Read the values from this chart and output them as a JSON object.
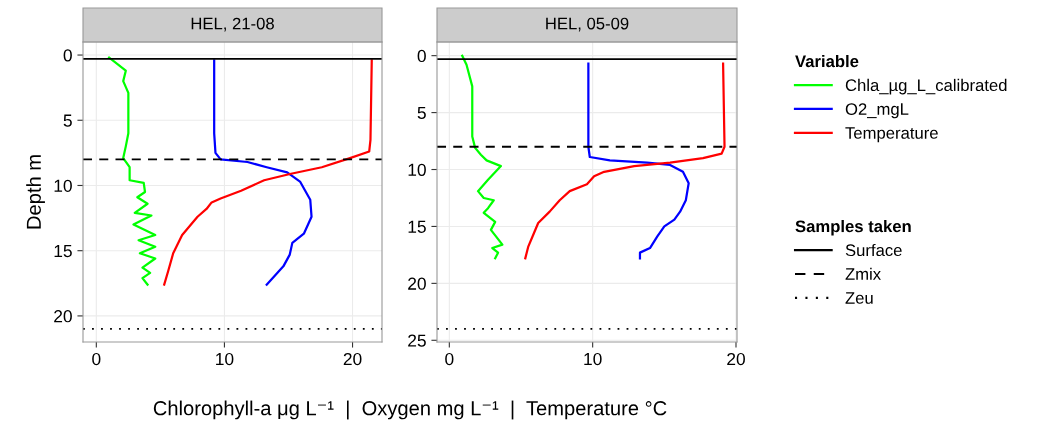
{
  "chart_data": [
    {
      "type": "line",
      "title": "HEL, 21-08",
      "ylabel": "Depth m",
      "xlabel": "Chlorophyll-a μg L⁻¹  |  Oxygen mg L⁻¹  |  Temperature °C",
      "legend": "right",
      "legend_title": "Variable",
      "annotations": [
        "Samples taken"
      ],
      "xlim": [
        -1.04,
        22.3
      ],
      "ylim": [
        22.0,
        -1.0
      ],
      "xticks": [
        0,
        10,
        20
      ],
      "yticks": [
        0,
        5,
        10,
        15,
        20
      ],
      "grid": true,
      "line_style": "solid",
      "series": [
        {
          "name": "Chla_µg_L_calibrated",
          "color": "#00ff00",
          "x": [
            1.0,
            2.3,
            2.1,
            2.5,
            2.5,
            2.3,
            2.1,
            2.6,
            2.6,
            3.7,
            3.8,
            3.2,
            4.0,
            3.0,
            4.3,
            2.9,
            4.6,
            3.3,
            4.6,
            3.4,
            4.6,
            3.6,
            4.2,
            3.6,
            4.0
          ],
          "values": [
            0.2,
            1.2,
            2.0,
            2.9,
            6.0,
            7.0,
            7.9,
            8.6,
            9.6,
            9.8,
            10.5,
            10.9,
            11.4,
            12.1,
            12.3,
            13.0,
            13.8,
            14.2,
            14.7,
            15.2,
            15.6,
            16.3,
            16.7,
            17.1,
            17.6
          ]
        },
        {
          "name": "O2_mgL",
          "color": "#0000ff",
          "x": [
            9.2,
            9.2,
            9.3,
            9.7,
            11.8,
            13.3,
            14.9,
            15.9,
            16.7,
            16.8,
            16.2,
            15.3,
            15.1,
            14.6,
            13.3
          ],
          "values": [
            0.4,
            6.0,
            7.5,
            8.0,
            8.2,
            8.6,
            9.0,
            9.7,
            11.1,
            12.4,
            13.7,
            14.4,
            15.3,
            16.2,
            17.6
          ]
        },
        {
          "name": "Temperature",
          "color": "#ff0000",
          "x": [
            21.5,
            21.4,
            21.3,
            19.8,
            17.6,
            15.2,
            13.1,
            11.3,
            9.7,
            9.0,
            8.6,
            7.9,
            6.7,
            6.0,
            5.6,
            5.3
          ],
          "values": [
            0.4,
            6.5,
            7.4,
            7.9,
            8.6,
            9.1,
            9.6,
            10.4,
            11.0,
            11.3,
            11.8,
            12.4,
            13.8,
            15.2,
            16.6,
            17.6
          ]
        }
      ],
      "ref_lines": [
        {
          "axis": "y",
          "value": 0.3,
          "label": "Surface",
          "color": "#000000",
          "line_style": "solid"
        },
        {
          "axis": "y",
          "value": 8.0,
          "label": "Zmix",
          "color": "#000000",
          "line_style": "dashed"
        },
        {
          "axis": "y",
          "value": 21.0,
          "label": "Zeu",
          "color": "#000000",
          "line_style": "dotted"
        }
      ]
    },
    {
      "type": "line",
      "title": "HEL, 05-09",
      "xlim": [
        -0.86,
        20.07
      ],
      "ylim": [
        25.15,
        -1.2
      ],
      "xticks": [
        0,
        10,
        20
      ],
      "yticks": [
        0,
        5,
        10,
        15,
        20,
        25
      ],
      "grid": true,
      "line_style": "solid",
      "series": [
        {
          "color": "#00ff00",
          "x": [
            0.9,
            1.2,
            1.6,
            1.6,
            1.6,
            1.8,
            2.2,
            2.6,
            3.6,
            2.7,
            2.0,
            2.4,
            3.1,
            2.7,
            2.4,
            3.2,
            2.9,
            3.7,
            3.0,
            3.4,
            3.2
          ],
          "values": [
            0.0,
            0.8,
            2.7,
            4.8,
            7.1,
            8.1,
            8.7,
            9.2,
            9.7,
            10.9,
            11.9,
            12.5,
            12.7,
            13.4,
            13.8,
            14.6,
            15.3,
            16.6,
            16.9,
            17.3,
            17.8
          ]
        },
        {
          "color": "#0000ff",
          "x": [
            9.7,
            9.7,
            9.8,
            11.2,
            13.8,
            15.4,
            16.3,
            16.7,
            16.5,
            16.1,
            15.7,
            15.0,
            14.5,
            14.0,
            13.3,
            13.3
          ],
          "values": [
            0.7,
            8.0,
            8.9,
            9.2,
            9.4,
            9.6,
            10.2,
            11.2,
            12.7,
            13.7,
            14.4,
            15.0,
            15.9,
            16.9,
            17.3,
            17.8
          ]
        },
        {
          "color": "#ff0000",
          "x": [
            19.1,
            19.2,
            19.0,
            17.7,
            15.4,
            12.9,
            10.8,
            10.1,
            9.6,
            8.4,
            7.7,
            7.0,
            6.2,
            5.9,
            5.5,
            5.3
          ],
          "values": [
            0.7,
            8.0,
            8.6,
            9.0,
            9.4,
            9.7,
            10.2,
            10.6,
            11.3,
            11.9,
            12.7,
            13.7,
            14.7,
            15.6,
            16.8,
            17.8
          ]
        }
      ],
      "ref_lines": [
        {
          "axis": "y",
          "value": 0.3,
          "color": "#000000",
          "line_style": "solid"
        },
        {
          "axis": "y",
          "value": 8.0,
          "color": "#000000",
          "line_style": "dashed"
        },
        {
          "axis": "y",
          "value": 24.0,
          "color": "#000000",
          "line_style": "dotted"
        }
      ]
    }
  ]
}
